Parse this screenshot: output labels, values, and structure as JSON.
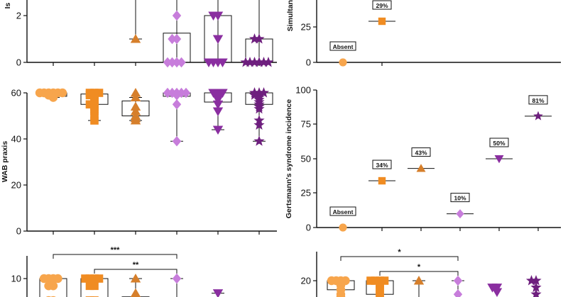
{
  "colors": {
    "orange_light": "#F7A54C",
    "orange": "#F08C22",
    "orange_dark": "#D67F2B",
    "lilac": "#C77DDB",
    "purple": "#8A2EA0",
    "purple_dark": "#6E1F7E"
  },
  "chart_data": [
    {
      "id": "top-left",
      "type": "box",
      "ylabel": "Is",
      "ylim": [
        0,
        3
      ],
      "yticks": [
        "0",
        "2"
      ],
      "groups": [
        {
          "marker": "circle",
          "color": "#F7A54C",
          "points": []
        },
        {
          "marker": "square",
          "color": "#F08C22",
          "points": []
        },
        {
          "marker": "triangle-up",
          "color": "#D67F2B",
          "whisker": [
            1,
            3
          ],
          "points": [
            1
          ]
        },
        {
          "marker": "diamond",
          "color": "#C77DDB",
          "box": [
            0,
            1.25
          ],
          "whisker": [
            0,
            3
          ],
          "points": [
            2,
            1,
            1,
            0,
            0,
            0,
            0
          ]
        },
        {
          "marker": "triangle-down",
          "color": "#8A2EA0",
          "box": [
            0,
            2
          ],
          "whisker": [
            0,
            3
          ],
          "points": [
            2,
            2,
            1,
            0,
            0,
            0,
            0
          ]
        },
        {
          "marker": "star",
          "color": "#6E1F7E",
          "box": [
            0,
            1
          ],
          "whisker": [
            0,
            3
          ],
          "points": [
            1,
            1,
            0,
            0,
            0,
            0,
            0,
            0
          ]
        }
      ]
    },
    {
      "id": "top-right",
      "type": "scatter",
      "ylabel": "Simultanag",
      "ylim": [
        0,
        50
      ],
      "yticks": [
        "0",
        "25"
      ],
      "groups": [
        {
          "marker": "circle",
          "color": "#F7A54C",
          "value": 0,
          "label": "Absent"
        },
        {
          "marker": "square",
          "color": "#F08C22",
          "value": 29,
          "label": "29%"
        }
      ]
    },
    {
      "id": "middle-left",
      "type": "box",
      "ylabel": "WAB praxis",
      "ylim": [
        0,
        60
      ],
      "yticks": [
        "0",
        "20",
        "40",
        "60"
      ],
      "groups": [
        {
          "marker": "circle",
          "color": "#F7A54C",
          "box": [
            58.5,
            60
          ],
          "whisker": [
            58,
            60
          ],
          "points": [
            60,
            60,
            60,
            60,
            60,
            60,
            59,
            59,
            58
          ]
        },
        {
          "marker": "square",
          "color": "#F08C22",
          "box": [
            55,
            59.5
          ],
          "whisker": [
            48,
            60
          ],
          "points": [
            60,
            60,
            60,
            59,
            59,
            58,
            57,
            56,
            55,
            55,
            54,
            53,
            52,
            50,
            48
          ]
        },
        {
          "marker": "triangle-up",
          "color": "#D67F2B",
          "box": [
            50,
            56.5
          ],
          "whisker": [
            48,
            58
          ],
          "points": [
            60,
            58,
            54,
            52,
            50,
            49,
            48
          ]
        },
        {
          "marker": "diamond",
          "color": "#C77DDB",
          "box": [
            58.5,
            60
          ],
          "whisker": [
            39,
            60
          ],
          "points": [
            60,
            60,
            60,
            60,
            60,
            59,
            55,
            39
          ]
        },
        {
          "marker": "triangle-down",
          "color": "#8A2EA0",
          "box": [
            56,
            60
          ],
          "whisker": [
            44,
            60
          ],
          "points": [
            60,
            60,
            60,
            59,
            58,
            57,
            55,
            52,
            44
          ]
        },
        {
          "marker": "star",
          "color": "#6E1F7E",
          "box": [
            55,
            60
          ],
          "whisker": [
            39,
            60
          ],
          "points": [
            60,
            60,
            60,
            59,
            59,
            58,
            57,
            56,
            55,
            54,
            53,
            48,
            46,
            39
          ]
        }
      ]
    },
    {
      "id": "middle-right",
      "type": "scatter",
      "ylabel": "Gertsmann's syndrome incidence",
      "ylim": [
        0,
        100
      ],
      "yticks": [
        "0",
        "25",
        "50",
        "75",
        "100"
      ],
      "groups": [
        {
          "marker": "circle",
          "color": "#F7A54C",
          "value": 0,
          "label": "Absent"
        },
        {
          "marker": "square",
          "color": "#F08C22",
          "value": 34,
          "label": "34%"
        },
        {
          "marker": "triangle-up",
          "color": "#D67F2B",
          "value": 43,
          "label": "43%"
        },
        {
          "marker": "diamond",
          "color": "#C77DDB",
          "value": 10,
          "label": "10%"
        },
        {
          "marker": "triangle-down",
          "color": "#8A2EA0",
          "value": 50,
          "label": "50%"
        },
        {
          "marker": "star",
          "color": "#6E1F7E",
          "value": 81,
          "label": "81%"
        }
      ]
    },
    {
      "id": "bottom-left",
      "type": "box",
      "ylabel": "",
      "ylim": [
        0,
        12
      ],
      "yticks": [
        "10"
      ],
      "significance": [
        {
          "from": 0,
          "to": 3,
          "label": "***"
        },
        {
          "from": 1,
          "to": 3,
          "label": "**"
        }
      ],
      "groups": [
        {
          "marker": "circle",
          "color": "#F7A54C",
          "box": [
            7,
            10
          ],
          "points": [
            10,
            10,
            10,
            10,
            9,
            9,
            7,
            7
          ]
        },
        {
          "marker": "square",
          "color": "#F08C22",
          "box": [
            7,
            10
          ],
          "points": [
            10,
            10,
            10,
            10,
            9,
            9,
            7,
            7
          ]
        },
        {
          "marker": "triangle-up",
          "color": "#D67F2B",
          "box": [
            6,
            7.5
          ],
          "whisker": [
            6,
            10
          ],
          "points": [
            10,
            8
          ]
        },
        {
          "marker": "diamond",
          "color": "#C77DDB",
          "whisker": [
            6,
            10
          ],
          "points": [
            10
          ]
        },
        {
          "marker": "triangle-down",
          "color": "#8A2EA0",
          "whisker": [
            7,
            8
          ],
          "points": [
            8
          ]
        },
        {
          "marker": "star",
          "color": "#6E1F7E",
          "points": []
        }
      ]
    },
    {
      "id": "bottom-right",
      "type": "box",
      "ylabel": "",
      "ylim": [
        0,
        24
      ],
      "yticks": [
        "20"
      ],
      "significance": [
        {
          "from": 0,
          "to": 3,
          "label": "*"
        },
        {
          "from": 1,
          "to": 3,
          "label": "*"
        }
      ],
      "groups": [
        {
          "marker": "circle",
          "color": "#F7A54C",
          "box": [
            16,
            20
          ],
          "points": [
            20,
            20,
            20,
            20,
            19,
            18,
            16,
            14,
            13
          ]
        },
        {
          "marker": "square",
          "color": "#F08C22",
          "box": [
            14,
            20
          ],
          "points": [
            20,
            20,
            20,
            20,
            19,
            18,
            17,
            16,
            14,
            13
          ]
        },
        {
          "marker": "triangle-up",
          "color": "#D67F2B",
          "whisker": [
            10,
            20
          ],
          "points": [
            20
          ]
        },
        {
          "marker": "diamond",
          "color": "#C77DDB",
          "whisker": [
            10,
            20
          ],
          "points": [
            20,
            14
          ]
        },
        {
          "marker": "triangle-down",
          "color": "#8A2EA0",
          "points": [
            17,
            17,
            15
          ]
        },
        {
          "marker": "star",
          "color": "#6E1F7E",
          "points": [
            20,
            20,
            17,
            14
          ]
        }
      ]
    }
  ]
}
